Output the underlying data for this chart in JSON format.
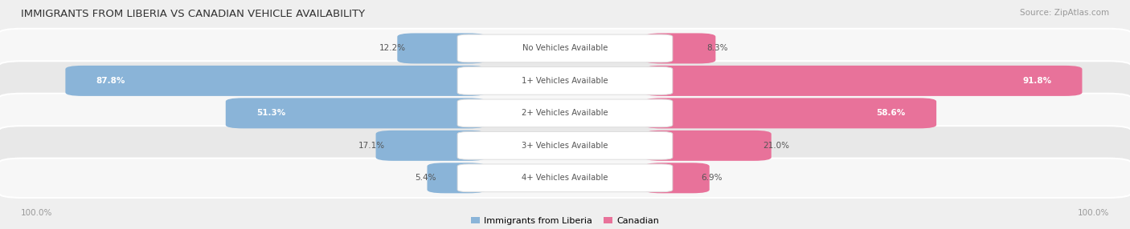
{
  "title": "IMMIGRANTS FROM LIBERIA VS CANADIAN VEHICLE AVAILABILITY",
  "source": "Source: ZipAtlas.com",
  "categories": [
    "No Vehicles Available",
    "1+ Vehicles Available",
    "2+ Vehicles Available",
    "3+ Vehicles Available",
    "4+ Vehicles Available"
  ],
  "liberia_values": [
    12.2,
    87.8,
    51.3,
    17.1,
    5.4
  ],
  "canadian_values": [
    8.3,
    91.8,
    58.6,
    21.0,
    6.9
  ],
  "liberia_color": "#8ab4d8",
  "canadian_color": "#e8729a",
  "liberia_color_pale": "#b8d0e8",
  "canadian_color_pale": "#f0a8c0",
  "bg_color": "#efefef",
  "row_bg_even": "#f7f7f7",
  "row_bg_odd": "#e8e8e8",
  "label_outside_color": "#555555",
  "label_inside_color": "#ffffff",
  "center_label_color": "#555555",
  "title_color": "#333333",
  "footer_color": "#999999",
  "figsize": [
    14.06,
    2.86
  ],
  "dpi": 100,
  "inside_threshold": 30.0
}
